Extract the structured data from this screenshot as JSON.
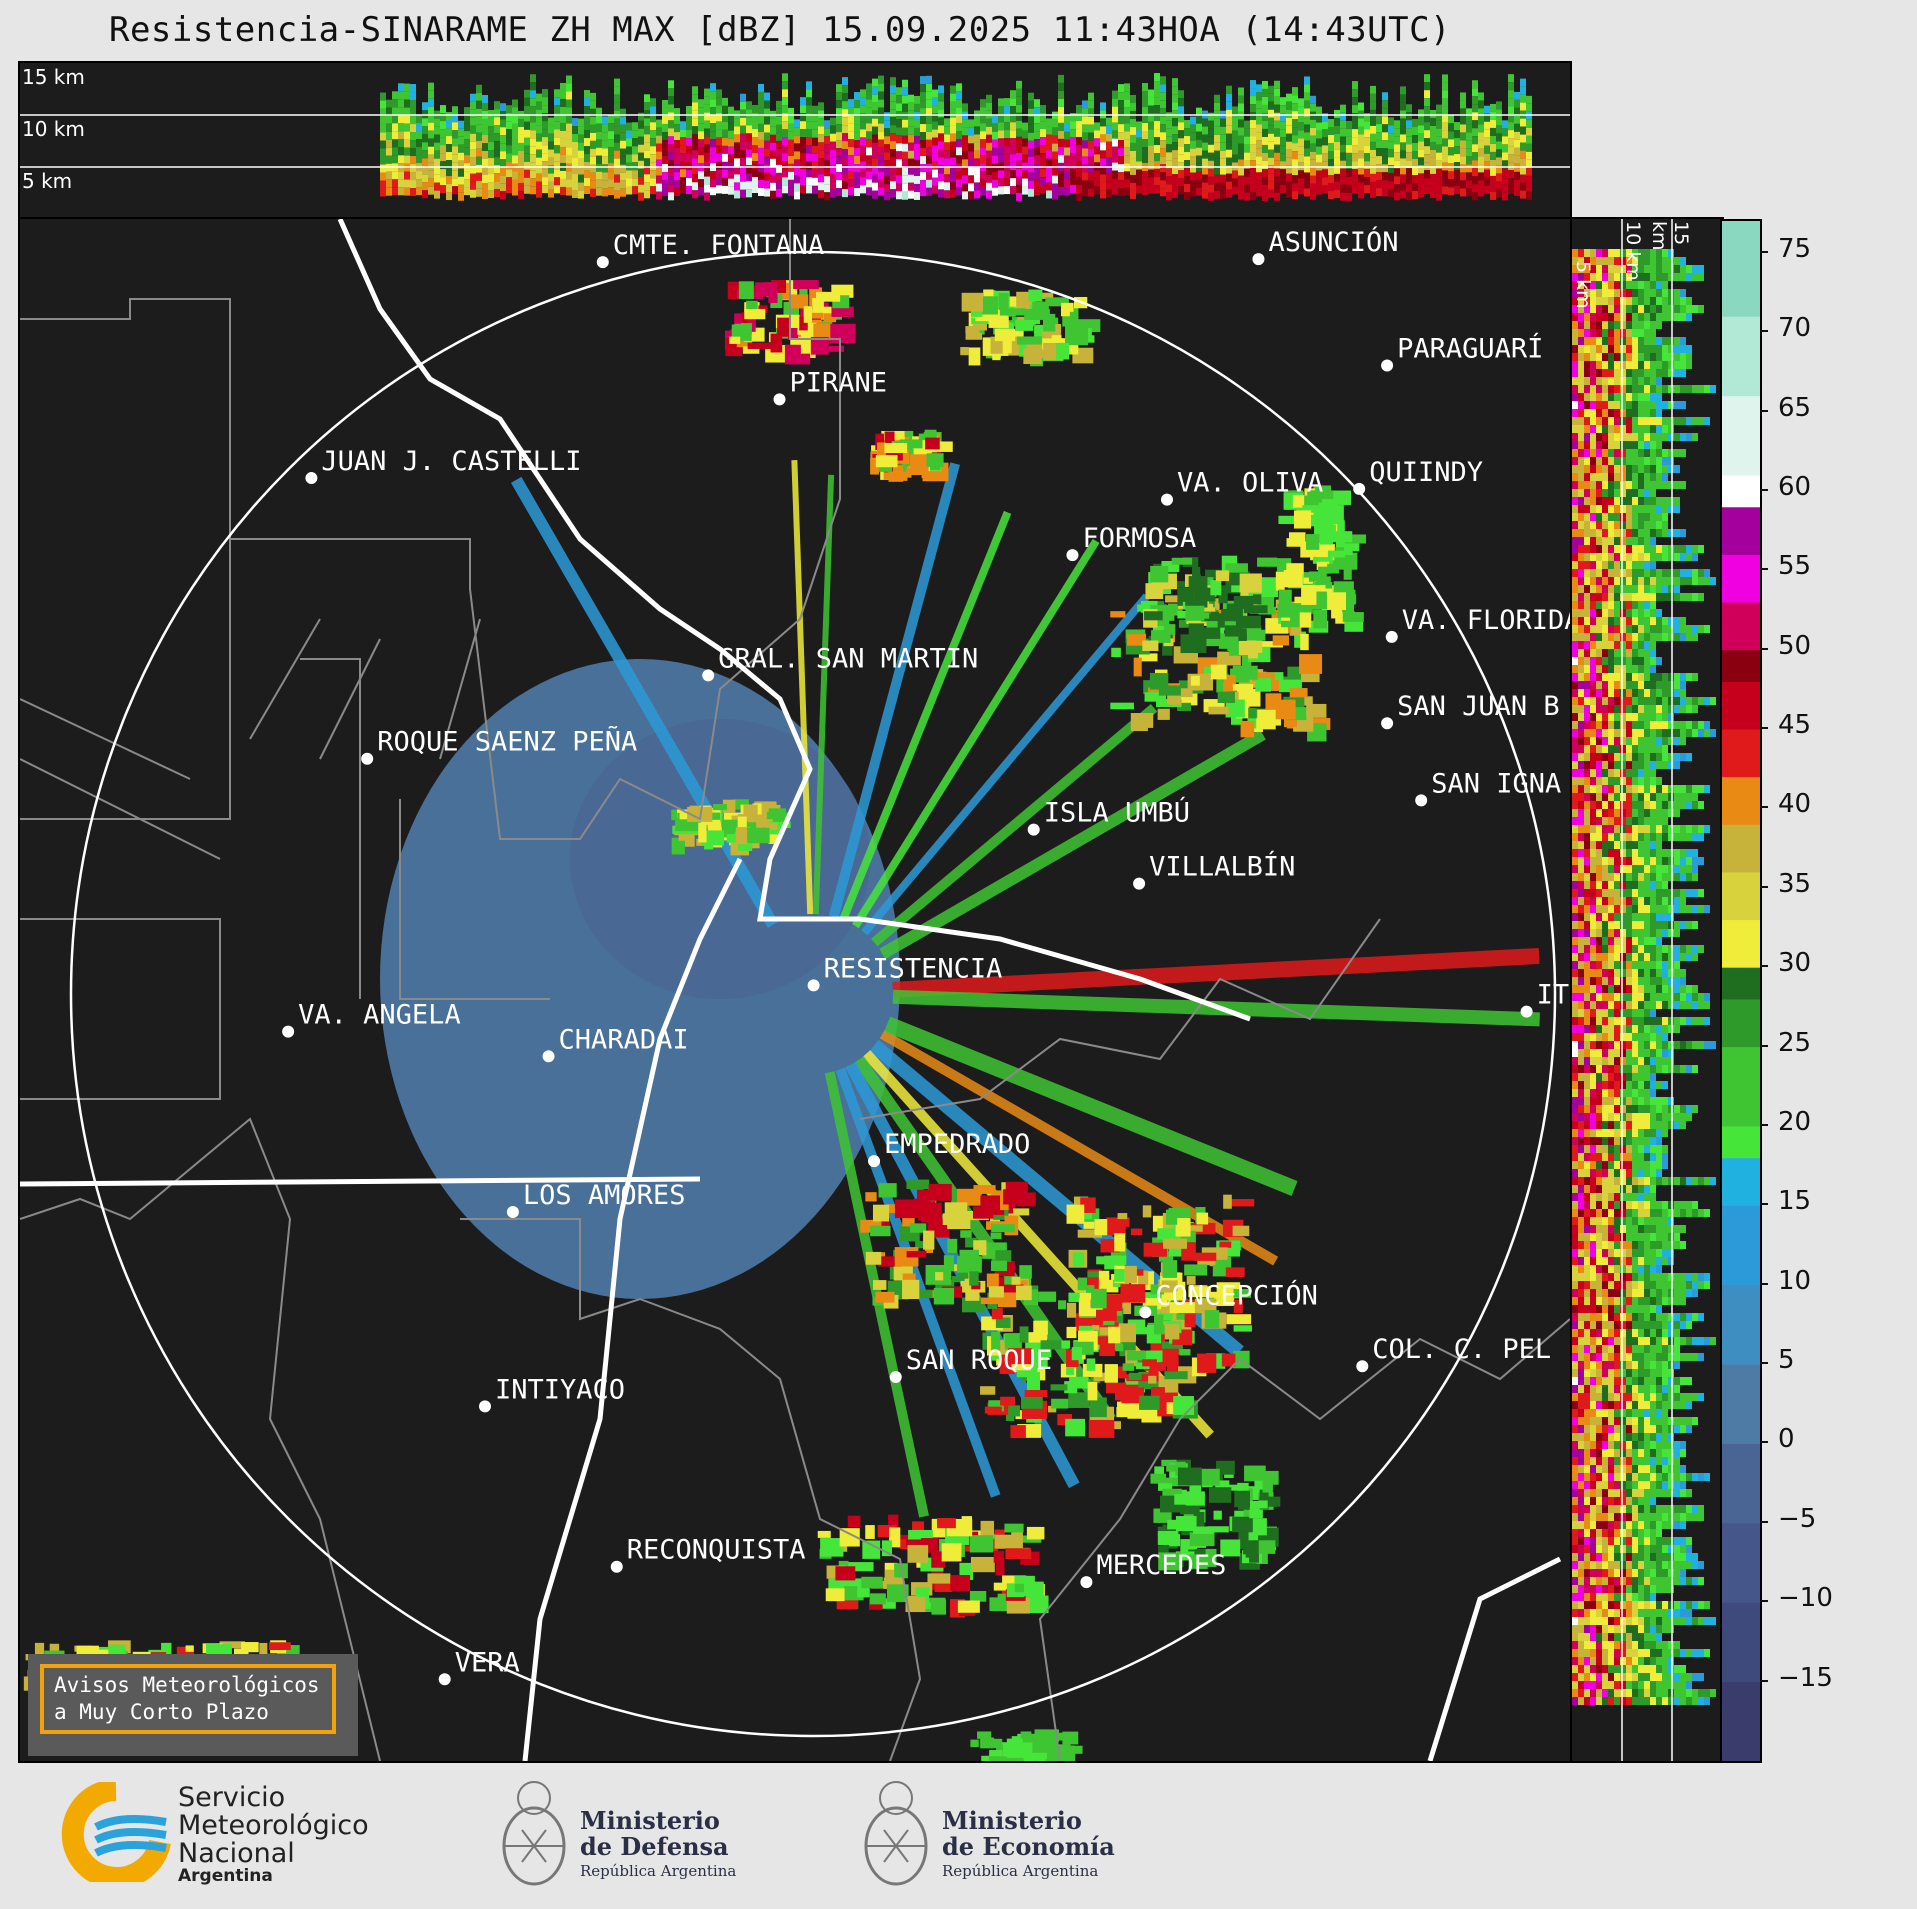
{
  "title": "Resistencia-SINARAME ZH MAX [dBZ] 15.09.2025 11:43HOA (14:43UTC)",
  "top_panel": {
    "height_labels": [
      "15 km",
      "10 km",
      "5 km"
    ]
  },
  "side_panel": {
    "height_labels": [
      "5 km",
      "10 km",
      "15 km"
    ]
  },
  "cities": [
    {
      "name": "CMTE. FONTANA",
      "lon": 0.376,
      "lat": 0.028
    },
    {
      "name": "ASUNCIÓN",
      "lon": 0.799,
      "lat": 0.026
    },
    {
      "name": "PARAGUARÍ",
      "lon": 0.882,
      "lat": 0.095
    },
    {
      "name": "PIRANE",
      "lon": 0.49,
      "lat": 0.117
    },
    {
      "name": "JUAN J. CASTELLI",
      "lon": 0.188,
      "lat": 0.168
    },
    {
      "name": "VA. OLIVA",
      "lon": 0.74,
      "lat": 0.182
    },
    {
      "name": "QUIINDY",
      "lon": 0.864,
      "lat": 0.175
    },
    {
      "name": "FORMOSA",
      "lon": 0.679,
      "lat": 0.218
    },
    {
      "name": "VA. FLORIDA",
      "lon": 0.885,
      "lat": 0.271
    },
    {
      "name": "GRAL. SAN MARTIN",
      "lon": 0.444,
      "lat": 0.296
    },
    {
      "name": "SAN JUAN B",
      "lon": 0.882,
      "lat": 0.327
    },
    {
      "name": "ROQUE SAENZ PEÑA",
      "lon": 0.224,
      "lat": 0.35
    },
    {
      "name": "SAN IGNA",
      "lon": 0.904,
      "lat": 0.377
    },
    {
      "name": "ISLA UMBÚ",
      "lon": 0.654,
      "lat": 0.396
    },
    {
      "name": "VILLALBÍN",
      "lon": 0.722,
      "lat": 0.431
    },
    {
      "name": "RESISTENCIA",
      "lon": 0.512,
      "lat": 0.497
    },
    {
      "name": "IT",
      "lon": 0.972,
      "lat": 0.514
    },
    {
      "name": "VA. ANGELA",
      "lon": 0.173,
      "lat": 0.527
    },
    {
      "name": "CHARADAI",
      "lon": 0.341,
      "lat": 0.543
    },
    {
      "name": "EMPEDRADO",
      "lon": 0.551,
      "lat": 0.611
    },
    {
      "name": "LOS AMORES",
      "lon": 0.318,
      "lat": 0.644
    },
    {
      "name": "CONCEPCIÓN",
      "lon": 0.726,
      "lat": 0.709
    },
    {
      "name": "COL. C. PEL",
      "lon": 0.866,
      "lat": 0.744
    },
    {
      "name": "SAN ROQUE",
      "lon": 0.565,
      "lat": 0.751
    },
    {
      "name": "INTIYACO",
      "lon": 0.3,
      "lat": 0.77
    },
    {
      "name": "RECONQUISTA",
      "lon": 0.385,
      "lat": 0.874
    },
    {
      "name": "MERCEDES",
      "lon": 0.688,
      "lat": 0.884
    },
    {
      "name": "VERA",
      "lon": 0.274,
      "lat": 0.947
    }
  ],
  "colorbar": {
    "ticks": [
      "75",
      "70",
      "65",
      "60",
      "55",
      "50",
      "45",
      "40",
      "35",
      "30",
      "25",
      "20",
      "15",
      "10",
      "5",
      "0",
      "−5",
      "−10",
      "−15"
    ],
    "vmin": -20,
    "vmax": 77,
    "colors": [
      {
        "from": -20,
        "to": -15,
        "color": "#3a3d6b"
      },
      {
        "from": -15,
        "to": -10,
        "color": "#3f4a7c"
      },
      {
        "from": -10,
        "to": -5,
        "color": "#44568a"
      },
      {
        "from": -5,
        "to": 0,
        "color": "#4a6593"
      },
      {
        "from": 0,
        "to": 5,
        "color": "#4e7aa6"
      },
      {
        "from": 5,
        "to": 10,
        "color": "#3f8ec2"
      },
      {
        "from": 10,
        "to": 15,
        "color": "#2c9ad8"
      },
      {
        "from": 15,
        "to": 18,
        "color": "#21b1e0"
      },
      {
        "from": 18,
        "to": 20,
        "color": "#46e53a"
      },
      {
        "from": 20,
        "to": 25,
        "color": "#3fc432"
      },
      {
        "from": 25,
        "to": 28,
        "color": "#2e9a2a"
      },
      {
        "from": 28,
        "to": 30,
        "color": "#1f6e1f"
      },
      {
        "from": 30,
        "to": 33,
        "color": "#f0ec3a"
      },
      {
        "from": 33,
        "to": 36,
        "color": "#d8d23c"
      },
      {
        "from": 36,
        "to": 39,
        "color": "#c7b23a"
      },
      {
        "from": 39,
        "to": 42,
        "color": "#e88a14"
      },
      {
        "from": 42,
        "to": 45,
        "color": "#e01a1a"
      },
      {
        "from": 45,
        "to": 48,
        "color": "#c6001c"
      },
      {
        "from": 48,
        "to": 50,
        "color": "#8a0010"
      },
      {
        "from": 50,
        "to": 53,
        "color": "#d0005a"
      },
      {
        "from": 53,
        "to": 56,
        "color": "#f000e0"
      },
      {
        "from": 56,
        "to": 59,
        "color": "#a4009e"
      },
      {
        "from": 59,
        "to": 61,
        "color": "#ffffff"
      },
      {
        "from": 61,
        "to": 66,
        "color": "#e0f4ee"
      },
      {
        "from": 66,
        "to": 71,
        "color": "#b2e8d6"
      },
      {
        "from": 71,
        "to": 77,
        "color": "#8ad8c0"
      }
    ]
  },
  "alert_box": {
    "line1": "Avisos Meteorológicos",
    "line2": "a Muy Corto Plazo"
  },
  "logos": {
    "smn": {
      "line1": "Servicio",
      "line2": "Meteorológico",
      "line3": "Nacional",
      "line4": "Argentina",
      "color": "#f2a900",
      "wave_color": "#2aa3dc"
    },
    "defensa": {
      "line1": "Ministerio",
      "line2": "de Defensa",
      "line3": "República Argentina"
    },
    "economia": {
      "line1": "Ministerio",
      "line2": "de Economía",
      "line3": "República Argentina"
    }
  }
}
